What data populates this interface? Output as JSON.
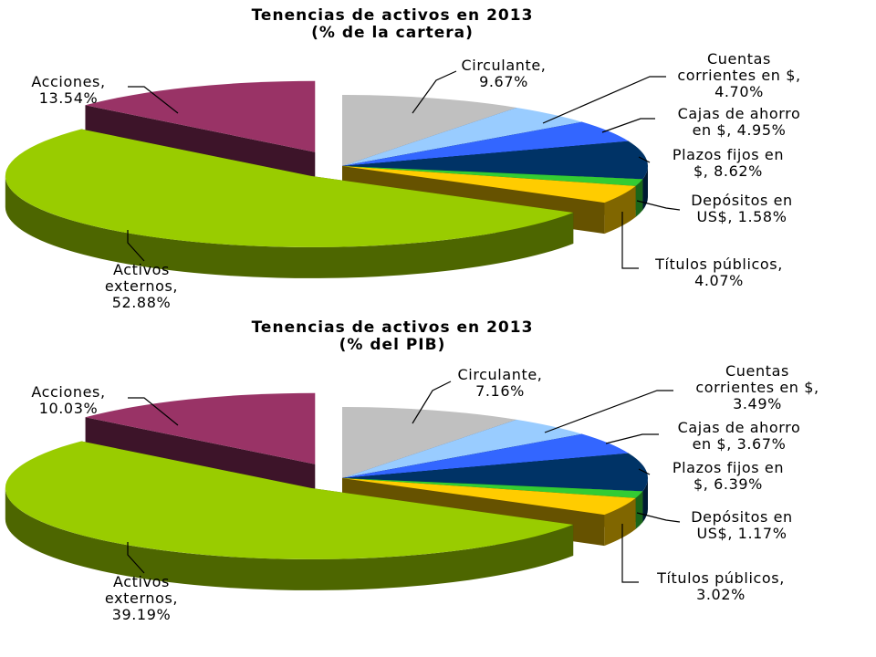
{
  "chart_data": [
    {
      "type": "pie",
      "style": "3d-exploded",
      "title": "Tenencias de activos en 2013",
      "subtitle": "(% de la cartera)",
      "slices": [
        {
          "label": "Circulante,",
          "value": 9.67,
          "value_text": "9.67%",
          "color": "#c0c0c0"
        },
        {
          "label": "Cuentas corrientes en $,",
          "value": 4.7,
          "value_text": "4.70%",
          "color": "#99ccff"
        },
        {
          "label": "Cajas de ahorro en $,",
          "value": 4.95,
          "value_text": "4.95%",
          "color": "#3366ff"
        },
        {
          "label": "Plazos fijos en $,",
          "value": 8.62,
          "value_text": "8.62%",
          "color": "#003366"
        },
        {
          "label": "Depósitos en US$,",
          "value": 1.58,
          "value_text": "1.58%",
          "color": "#33cc33"
        },
        {
          "label": "Títulos públicos,",
          "value": 4.07,
          "value_text": "4.07%",
          "color": "#ffcc00"
        },
        {
          "label": "Activos externos,",
          "value": 52.88,
          "value_text": "52.88%",
          "color": "#99cc00"
        },
        {
          "label": "Acciones,",
          "value": 13.54,
          "value_text": "13.54%",
          "color": "#993366"
        }
      ]
    },
    {
      "type": "pie",
      "style": "3d-exploded",
      "title": "Tenencias de activos en 2013",
      "subtitle": "(% del PIB)",
      "slices": [
        {
          "label": "Circulante,",
          "value": 7.16,
          "value_text": "7.16%",
          "color": "#c0c0c0"
        },
        {
          "label": "Cuentas corrientes en $,",
          "value": 3.49,
          "value_text": "3.49%",
          "color": "#99ccff"
        },
        {
          "label": "Cajas de ahorro en $,",
          "value": 3.67,
          "value_text": "3.67%",
          "color": "#3366ff"
        },
        {
          "label": "Plazos fijos en $,",
          "value": 6.39,
          "value_text": "6.39%",
          "color": "#003366"
        },
        {
          "label": "Depósitos en US$,",
          "value": 1.17,
          "value_text": "1.17%",
          "color": "#33cc33"
        },
        {
          "label": "Títulos públicos,",
          "value": 3.02,
          "value_text": "3.02%",
          "color": "#ffcc00"
        },
        {
          "label": "Activos externos,",
          "value": 39.19,
          "value_text": "39.19%",
          "color": "#99cc00"
        },
        {
          "label": "Acciones,",
          "value": 10.03,
          "value_text": "10.03%",
          "color": "#993366"
        }
      ]
    }
  ]
}
